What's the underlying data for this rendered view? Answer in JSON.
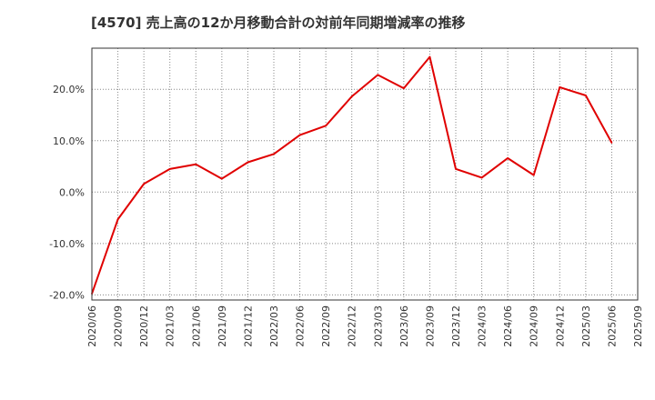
{
  "chart_data": {
    "type": "line",
    "title": "[4570]  売上高の12か月移動合計の対前年同期増減率の推移",
    "xlabel": "",
    "ylabel": "",
    "ylim": [
      -21,
      28
    ],
    "y_ticks": [
      -20,
      -10,
      0,
      10,
      20
    ],
    "y_tick_labels": [
      "-20.0%",
      "-10.0%",
      "0.0%",
      "10.0%",
      "20.0%"
    ],
    "grid": true,
    "categories": [
      "2020/06",
      "2020/09",
      "2020/12",
      "2021/03",
      "2021/06",
      "2021/09",
      "2021/12",
      "2022/03",
      "2022/06",
      "2022/09",
      "2022/12",
      "2023/03",
      "2023/06",
      "2023/09",
      "2023/12",
      "2024/03",
      "2024/06",
      "2024/09",
      "2024/12",
      "2025/03",
      "2025/06",
      "2025/09"
    ],
    "series": [
      {
        "name": "増減率",
        "color": "#e00000",
        "values": [
          -19.8,
          -5.3,
          1.6,
          4.5,
          5.4,
          2.6,
          5.8,
          7.4,
          11.1,
          12.9,
          18.6,
          22.8,
          20.2,
          26.3,
          4.5,
          2.8,
          6.6,
          3.3,
          20.4,
          18.8,
          9.6,
          null
        ]
      }
    ]
  }
}
